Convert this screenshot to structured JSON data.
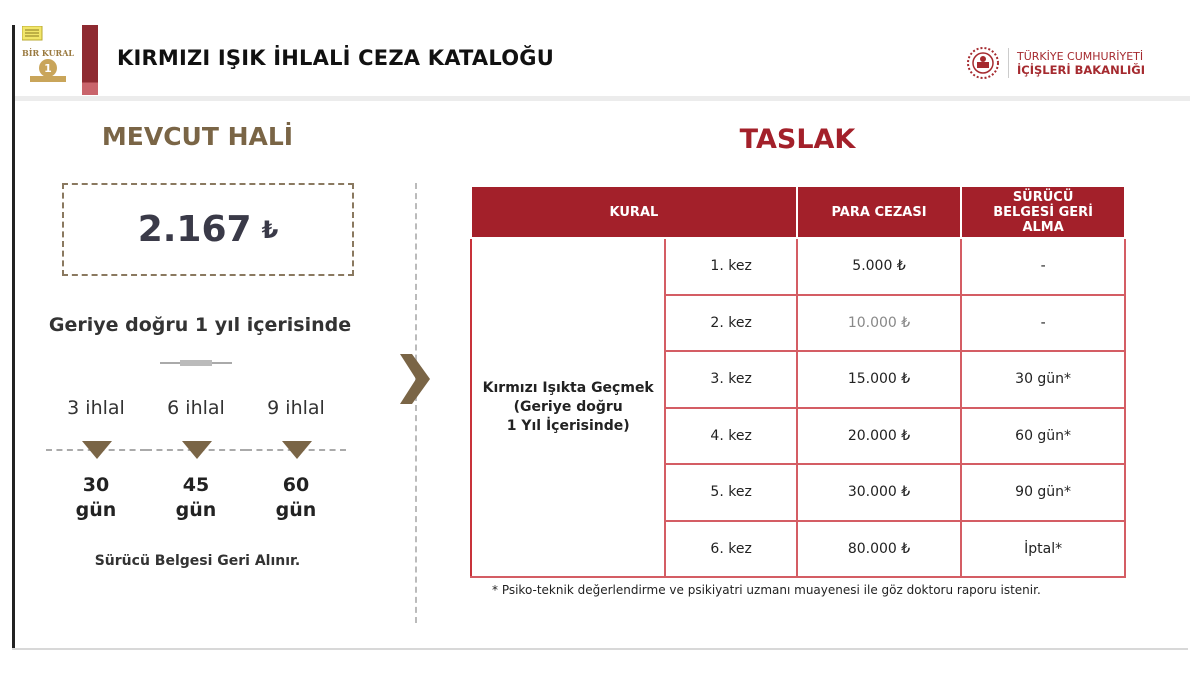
{
  "header": {
    "title": "KIRMIZI IŞIK İHLALİ CEZA KATALOĞU",
    "ministry_line1": "TÜRKİYE CUMHURİYETİ",
    "ministry_line2": "İÇİŞLERİ BAKANLIĞI",
    "logo_text": "BİR KURAL 1"
  },
  "colors": {
    "accent_red": "#a3202a",
    "brown": "#7a6546"
  },
  "current": {
    "heading": "MEVCUT HALİ",
    "amount": "2.167",
    "currency": "₺",
    "period": "Geriye doğru 1 yıl içerisinde",
    "steps": [
      {
        "violations": "3 ihlal",
        "days": "30",
        "unit": "gün"
      },
      {
        "violations": "6 ihlal",
        "days": "45",
        "unit": "gün"
      },
      {
        "violations": "9 ihlal",
        "days": "60",
        "unit": "gün"
      }
    ],
    "note": "Sürücü Belgesi Geri Alınır."
  },
  "draft": {
    "heading": "TASLAK",
    "columns": [
      "KURAL",
      "PARA CEZASI",
      "SÜRÜCÜ BELGESİ GERİ ALMA"
    ],
    "rule": "Kırmızı Işıkta Geçmek (Geriye doğru 1 Yıl İçerisinde)",
    "rule_lines": [
      "Kırmızı Işıkta Geçmek",
      "(Geriye doğru",
      "1 Yıl İçerisinde)"
    ],
    "rows": [
      {
        "count": "1. kez",
        "fine": "5.000 ₺",
        "license": "-"
      },
      {
        "count": "2. kez",
        "fine": "10.000 ₺",
        "license": "-"
      },
      {
        "count": "3. kez",
        "fine": "15.000 ₺",
        "license": "30 gün*"
      },
      {
        "count": "4. kez",
        "fine": "20.000 ₺",
        "license": "60 gün*"
      },
      {
        "count": "5. kez",
        "fine": "30.000 ₺",
        "license": "90 gün*"
      },
      {
        "count": "6. kez",
        "fine": "80.000 ₺",
        "license": "İptal*"
      }
    ],
    "footnote": "* Psiko-teknik değerlendirme ve psikiyatri uzmanı muayenesi ile göz doktoru raporu istenir."
  }
}
